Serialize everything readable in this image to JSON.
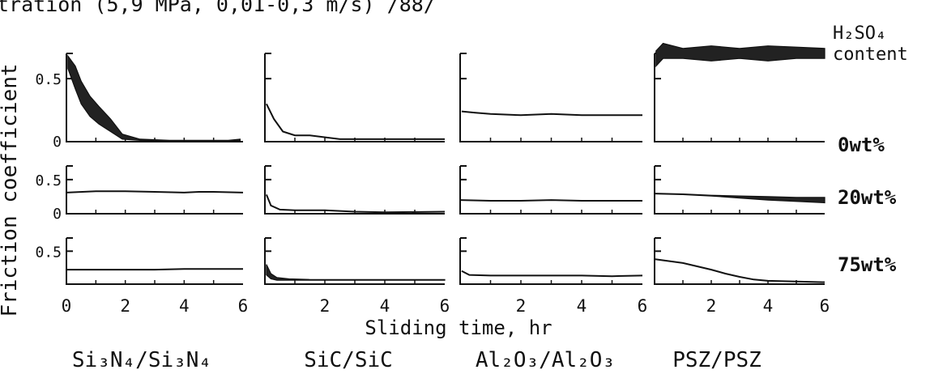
{
  "title_fragment": "tration (5,9 MPa, 0,01-0,3 m/s) /88/",
  "ylabel": "Friction coefficient",
  "xlabel": "Sliding time, hr",
  "content_header": [
    "H₂SO₄",
    "content"
  ],
  "colors": {
    "ink": "#111111",
    "band": "#222222"
  },
  "chart_data": {
    "type": "line",
    "title": "",
    "xlabel": "Sliding time, hr",
    "ylabel": "Friction coefficient",
    "xlim": [
      0,
      6
    ],
    "ylim": [
      0,
      0.7
    ],
    "x_ticks": [
      "0",
      "2",
      "4",
      "6"
    ],
    "y_tick_labels": [
      [
        "0.5",
        "0"
      ],
      [
        "0.5",
        "0"
      ],
      [
        "0.5",
        ""
      ]
    ],
    "row_labels": [
      "0wt%",
      "20wt%",
      "75wt%"
    ],
    "column_labels": [
      "Si₃N₄/Si₃N₄",
      "SiC/SiC",
      "Al₂O₃/Al₂O₃",
      "PSZ/PSZ"
    ],
    "panels": [
      [
        {
          "x": [
            0.05,
            0.3,
            0.5,
            0.8,
            1.1,
            1.5,
            1.9,
            2.5,
            3.5,
            4.5,
            5.5,
            5.9
          ],
          "upper": [
            0.68,
            0.6,
            0.48,
            0.36,
            0.28,
            0.18,
            0.06,
            0.02,
            0.01,
            0.01,
            0.01,
            0.02
          ],
          "lower": [
            0.58,
            0.42,
            0.3,
            0.2,
            0.14,
            0.08,
            0.02,
            0.01,
            0.01,
            0.01,
            0.01,
            0.01
          ]
        },
        {
          "x": [
            0.05,
            0.3,
            0.6,
            1.0,
            1.5,
            2.5,
            4.0,
            6.0
          ],
          "values": [
            0.3,
            0.18,
            0.08,
            0.05,
            0.05,
            0.02,
            0.02,
            0.02
          ]
        },
        {
          "x": [
            0.05,
            0.5,
            1.0,
            2.0,
            3.0,
            4.0,
            5.0,
            6.0
          ],
          "values": [
            0.24,
            0.23,
            0.22,
            0.21,
            0.22,
            0.21,
            0.21,
            0.21
          ]
        },
        {
          "x": [
            0.05,
            0.3,
            1.0,
            2.0,
            3.0,
            4.0,
            5.0,
            6.0
          ],
          "upper": [
            0.72,
            0.78,
            0.74,
            0.76,
            0.74,
            0.76,
            0.75,
            0.74
          ],
          "lower": [
            0.6,
            0.66,
            0.66,
            0.64,
            0.66,
            0.64,
            0.66,
            0.66
          ]
        }
      ],
      [
        {
          "x": [
            0.0,
            1.0,
            2.0,
            3.0,
            4.0,
            4.5,
            5.0,
            6.0
          ],
          "values": [
            0.31,
            0.33,
            0.33,
            0.32,
            0.31,
            0.32,
            0.32,
            0.31
          ]
        },
        {
          "x": [
            0.05,
            0.2,
            0.5,
            1.0,
            2.0,
            3.0,
            4.0,
            6.0
          ],
          "values": [
            0.28,
            0.12,
            0.06,
            0.05,
            0.05,
            0.03,
            0.02,
            0.03
          ]
        },
        {
          "x": [
            0.0,
            1.0,
            2.0,
            3.0,
            4.0,
            5.0,
            6.0
          ],
          "values": [
            0.2,
            0.19,
            0.19,
            0.2,
            0.19,
            0.19,
            0.19
          ]
        },
        {
          "x": [
            0.0,
            1.0,
            2.0,
            3.0,
            4.0,
            5.0,
            6.0
          ],
          "upper": [
            0.3,
            0.29,
            0.27,
            0.26,
            0.25,
            0.24,
            0.24
          ],
          "lower": [
            0.29,
            0.28,
            0.26,
            0.23,
            0.2,
            0.18,
            0.16
          ]
        }
      ],
      [
        {
          "x": [
            0.0,
            1.0,
            2.0,
            3.0,
            4.0,
            5.0,
            6.0
          ],
          "values": [
            0.22,
            0.22,
            0.22,
            0.22,
            0.23,
            0.23,
            0.23
          ]
        },
        {
          "x": [
            0.05,
            0.2,
            0.4,
            0.8,
            1.5,
            3.0,
            4.5,
            6.0
          ],
          "upper": [
            0.3,
            0.16,
            0.1,
            0.08,
            0.07,
            0.07,
            0.07,
            0.07
          ],
          "lower": [
            0.14,
            0.08,
            0.06,
            0.06,
            0.06,
            0.06,
            0.06,
            0.06
          ]
        },
        {
          "x": [
            0.05,
            0.3,
            1.0,
            2.0,
            3.0,
            4.0,
            5.0,
            6.0
          ],
          "values": [
            0.2,
            0.14,
            0.13,
            0.13,
            0.13,
            0.13,
            0.12,
            0.13
          ]
        },
        {
          "x": [
            0.0,
            0.5,
            1.0,
            1.5,
            2.0,
            2.5,
            3.0,
            3.5,
            4.0,
            5.0,
            6.0
          ],
          "values": [
            0.38,
            0.35,
            0.32,
            0.27,
            0.22,
            0.16,
            0.11,
            0.07,
            0.05,
            0.04,
            0.03
          ]
        }
      ]
    ]
  }
}
